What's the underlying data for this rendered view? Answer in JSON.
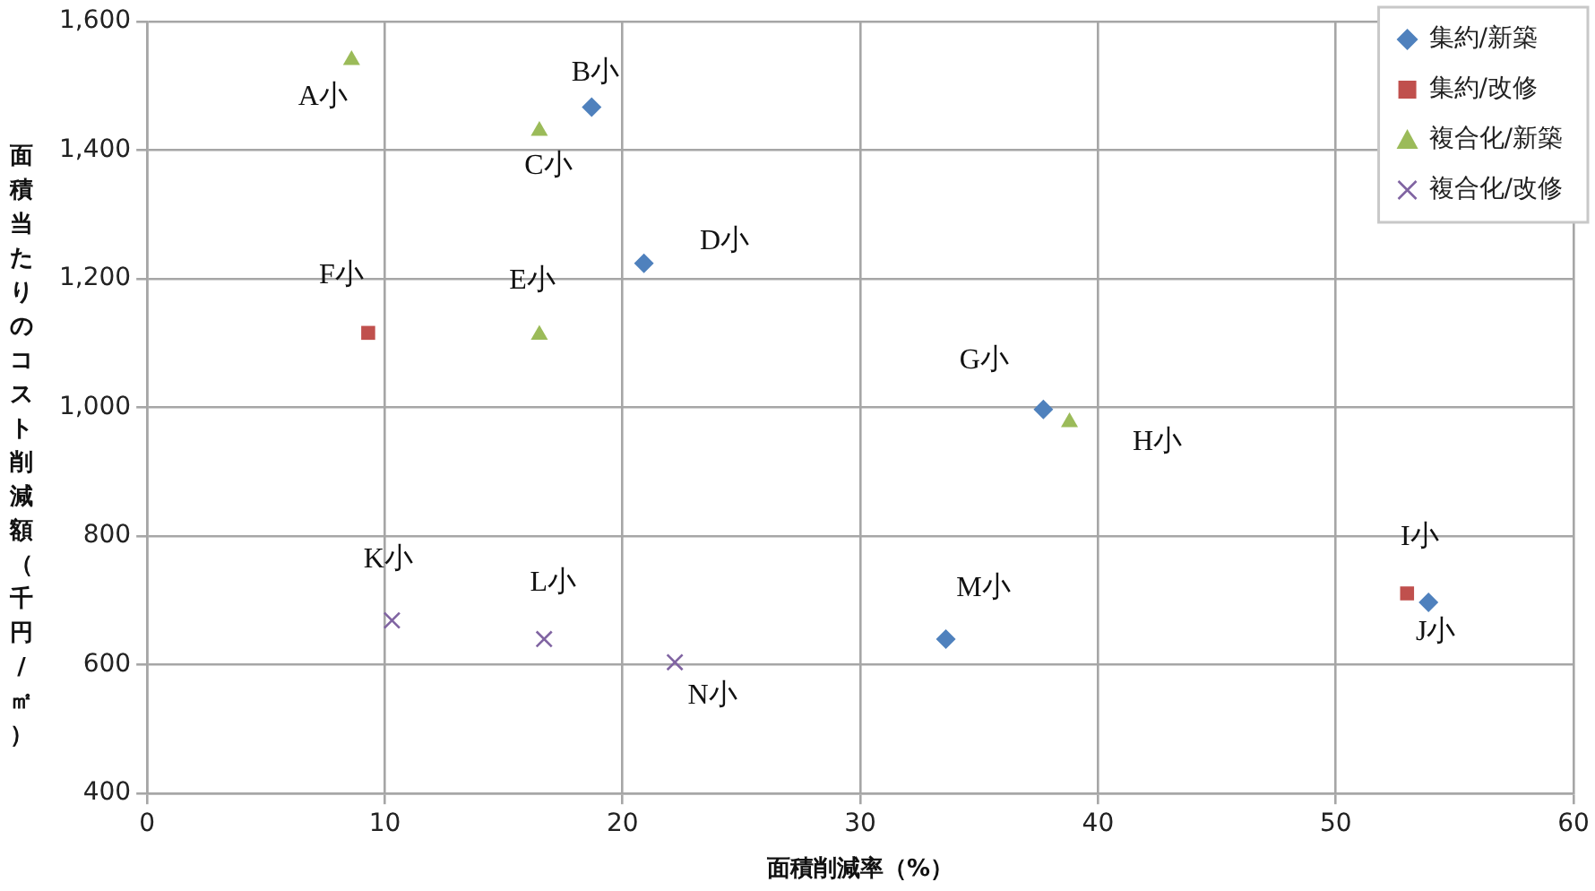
{
  "chart_data": {
    "type": "scatter",
    "xlabel": "面積削減率（%）",
    "ylabel": "面積当たりのコスト削減額（千円/㎡）",
    "xlim": [
      0,
      60
    ],
    "xticks": [
      0,
      10,
      20,
      30,
      40,
      50,
      60
    ],
    "ylim": [
      400,
      1600
    ],
    "yticks": [
      400,
      600,
      800,
      {
        "value": 1000,
        "label": "1,000"
      },
      {
        "value": 1200,
        "label": "1,200"
      },
      {
        "value": 1400,
        "label": "1,400"
      },
      {
        "value": 1600,
        "label": "1,600"
      }
    ],
    "grid": true,
    "legend": "top right",
    "series": [
      {
        "name": "集約/新築",
        "color": "#4f81bd",
        "marker": "diamond",
        "x": [
          18.7,
          20.9,
          37.7,
          33.6,
          53.9
        ],
        "values": [
          1467,
          1224,
          997,
          640,
          697
        ]
      },
      {
        "name": "集約/改修",
        "color": "#c0504d",
        "marker": "square",
        "x": [
          9.3,
          53.0
        ],
        "values": [
          1116,
          711
        ]
      },
      {
        "name": "複合化/新築",
        "color": "#9bbb59",
        "marker": "triangle",
        "x": [
          8.6,
          16.5,
          16.5,
          38.8
        ],
        "values": [
          1540,
          1430,
          1113,
          977
        ]
      },
      {
        "name": "複合化/改修",
        "color": "#8064a2",
        "marker": "cross",
        "x": [
          10.3,
          16.7,
          22.2
        ],
        "values": [
          669,
          640,
          604
        ]
      }
    ],
    "annotations": [
      {
        "text": "A小",
        "x": 8.6,
        "y": 1540
      },
      {
        "text": "B小",
        "x": 18.7,
        "y": 1467
      },
      {
        "text": "C小",
        "x": 16.5,
        "y": 1430
      },
      {
        "text": "D小",
        "x": 20.9,
        "y": 1224
      },
      {
        "text": "E小",
        "x": 16.5,
        "y": 1113
      },
      {
        "text": "F小",
        "x": 9.3,
        "y": 1116
      },
      {
        "text": "G小",
        "x": 37.7,
        "y": 997
      },
      {
        "text": "H小",
        "x": 38.8,
        "y": 977
      },
      {
        "text": "I小",
        "x": 53.0,
        "y": 711
      },
      {
        "text": "J小",
        "x": 53.9,
        "y": 697
      },
      {
        "text": "K小",
        "x": 10.3,
        "y": 669
      },
      {
        "text": "L小",
        "x": 16.7,
        "y": 640
      },
      {
        "text": "M小",
        "x": 33.6,
        "y": 640
      },
      {
        "text": "N小",
        "x": 22.2,
        "y": 604
      }
    ]
  }
}
